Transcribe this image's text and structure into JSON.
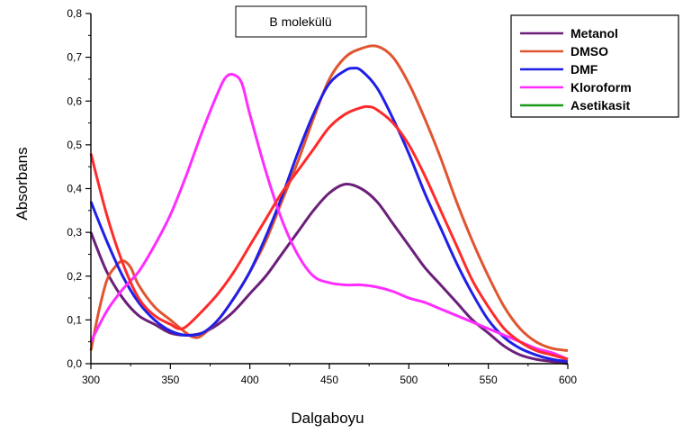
{
  "chart_data": {
    "type": "line",
    "title": "B molekülü",
    "xlabel": "Dalgaboyu",
    "ylabel": "Absorbans",
    "xlim": [
      300,
      600
    ],
    "ylim": [
      0,
      0.8
    ],
    "x_ticks": [
      "300",
      "350",
      "400",
      "450",
      "500",
      "550",
      "600"
    ],
    "y_ticks": [
      "0,0",
      "0,1",
      "0,2",
      "0,3",
      "0,4",
      "0,5",
      "0,6",
      "0,7",
      "0,8"
    ],
    "grid": false,
    "legend_position": "top-right",
    "series": [
      {
        "name": "Metanol",
        "color": "#6b1f7a",
        "x": [
          300,
          310,
          320,
          330,
          340,
          350,
          360,
          370,
          380,
          390,
          400,
          410,
          420,
          430,
          440,
          450,
          460,
          470,
          480,
          490,
          500,
          510,
          520,
          530,
          540,
          550,
          560,
          570,
          580,
          590,
          600
        ],
        "y": [
          0.3,
          0.21,
          0.15,
          0.11,
          0.09,
          0.07,
          0.065,
          0.07,
          0.09,
          0.12,
          0.16,
          0.2,
          0.25,
          0.3,
          0.35,
          0.39,
          0.41,
          0.4,
          0.37,
          0.32,
          0.27,
          0.22,
          0.18,
          0.14,
          0.1,
          0.07,
          0.04,
          0.02,
          0.01,
          0.005,
          0.0
        ]
      },
      {
        "name": "DMSO",
        "color": "#e05530",
        "x": [
          300,
          305,
          310,
          315,
          320,
          325,
          330,
          340,
          350,
          360,
          365,
          370,
          380,
          390,
          400,
          410,
          420,
          430,
          440,
          450,
          460,
          470,
          480,
          490,
          500,
          510,
          520,
          530,
          540,
          550,
          560,
          570,
          580,
          590,
          600
        ],
        "y": [
          0.03,
          0.12,
          0.19,
          0.22,
          0.235,
          0.22,
          0.18,
          0.13,
          0.1,
          0.07,
          0.06,
          0.065,
          0.1,
          0.15,
          0.21,
          0.28,
          0.37,
          0.46,
          0.56,
          0.65,
          0.7,
          0.72,
          0.725,
          0.7,
          0.64,
          0.56,
          0.47,
          0.37,
          0.28,
          0.2,
          0.13,
          0.08,
          0.05,
          0.035,
          0.03
        ]
      },
      {
        "name": "DMF",
        "color": "#1f1fe8",
        "x": [
          300,
          310,
          320,
          330,
          340,
          350,
          360,
          370,
          380,
          390,
          400,
          410,
          420,
          430,
          440,
          450,
          460,
          465,
          470,
          480,
          490,
          500,
          510,
          520,
          530,
          540,
          550,
          560,
          570,
          580,
          590,
          600
        ],
        "y": [
          0.37,
          0.28,
          0.2,
          0.14,
          0.1,
          0.075,
          0.065,
          0.07,
          0.1,
          0.15,
          0.21,
          0.29,
          0.38,
          0.48,
          0.57,
          0.64,
          0.67,
          0.675,
          0.67,
          0.63,
          0.56,
          0.48,
          0.39,
          0.31,
          0.23,
          0.16,
          0.1,
          0.06,
          0.035,
          0.02,
          0.01,
          0.005
        ]
      },
      {
        "name": "Kloroform",
        "color": "#ff2cff",
        "x": [
          300,
          310,
          320,
          330,
          340,
          350,
          360,
          370,
          380,
          385,
          390,
          395,
          400,
          410,
          420,
          430,
          440,
          450,
          460,
          470,
          480,
          490,
          500,
          510,
          520,
          530,
          540,
          550,
          560,
          570,
          580,
          590,
          600
        ],
        "y": [
          0.05,
          0.12,
          0.17,
          0.21,
          0.27,
          0.34,
          0.43,
          0.53,
          0.62,
          0.655,
          0.66,
          0.64,
          0.57,
          0.44,
          0.33,
          0.25,
          0.2,
          0.185,
          0.18,
          0.18,
          0.175,
          0.165,
          0.15,
          0.14,
          0.125,
          0.11,
          0.095,
          0.08,
          0.065,
          0.05,
          0.035,
          0.025,
          0.01
        ]
      },
      {
        "name": "Asetikasit",
        "color": "#1a9a1a",
        "x": [],
        "y": []
      },
      {
        "name": "",
        "color": "#ff2a2a",
        "x": [
          300,
          310,
          320,
          330,
          340,
          350,
          355,
          360,
          370,
          380,
          390,
          400,
          410,
          420,
          430,
          440,
          450,
          460,
          470,
          475,
          480,
          490,
          500,
          510,
          520,
          530,
          540,
          550,
          560,
          570,
          580,
          590,
          600
        ],
        "y": [
          0.48,
          0.34,
          0.23,
          0.15,
          0.11,
          0.09,
          0.08,
          0.085,
          0.12,
          0.16,
          0.21,
          0.27,
          0.33,
          0.39,
          0.44,
          0.49,
          0.54,
          0.57,
          0.585,
          0.587,
          0.58,
          0.55,
          0.5,
          0.43,
          0.35,
          0.27,
          0.19,
          0.13,
          0.08,
          0.05,
          0.03,
          0.02,
          0.01
        ]
      }
    ]
  }
}
